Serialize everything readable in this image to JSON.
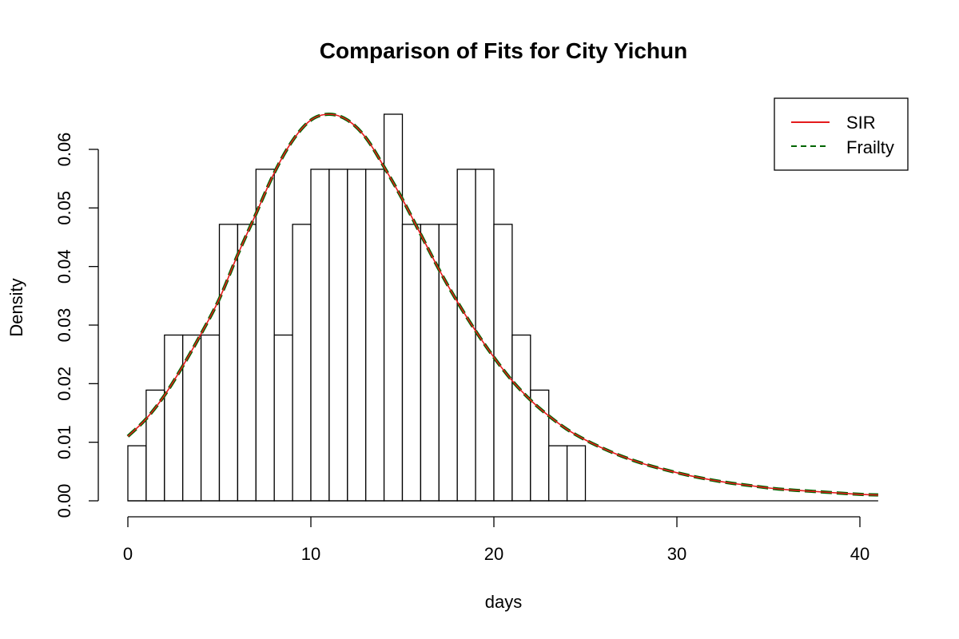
{
  "chart_data": {
    "type": "histogram",
    "title": "Comparison of Fits for City Yichun",
    "xlabel": "days",
    "ylabel": "Density",
    "xlim": [
      0,
      41
    ],
    "ylim": [
      0,
      0.066
    ],
    "x_ticks": [
      0,
      10,
      20,
      30,
      40
    ],
    "y_ticks": [
      0.0,
      0.01,
      0.02,
      0.03,
      0.04,
      0.05,
      0.06
    ],
    "x_tick_labels": [
      "0",
      "10",
      "20",
      "30",
      "40"
    ],
    "y_tick_labels": [
      "0.00",
      "0.01",
      "0.02",
      "0.03",
      "0.04",
      "0.05",
      "0.06"
    ],
    "grid": false,
    "legend_position": "top-right",
    "histogram": {
      "bin_width": 1,
      "bin_starts": [
        0,
        1,
        2,
        3,
        4,
        5,
        6,
        7,
        8,
        9,
        10,
        11,
        12,
        13,
        14,
        15,
        16,
        17,
        18,
        19,
        20,
        21,
        22,
        23,
        24
      ],
      "densities": [
        0.0094,
        0.0189,
        0.0283,
        0.0283,
        0.0283,
        0.0472,
        0.0472,
        0.0566,
        0.0283,
        0.0472,
        0.0566,
        0.0566,
        0.0566,
        0.0566,
        0.066,
        0.0472,
        0.0472,
        0.0472,
        0.0566,
        0.0566,
        0.0472,
        0.0283,
        0.0189,
        0.0094,
        0.0094
      ]
    },
    "series": [
      {
        "name": "SIR",
        "style": "solid",
        "color": "#e41a1c",
        "x": [
          0,
          1,
          2,
          3,
          4,
          5,
          6,
          7,
          8,
          9,
          10,
          11,
          12,
          13,
          14,
          15,
          16,
          17,
          18,
          19,
          20,
          21,
          22,
          23,
          24,
          25,
          26,
          27,
          28,
          29,
          30,
          31,
          32,
          33,
          34,
          35,
          36,
          37,
          38,
          39,
          40,
          41
        ],
        "y": [
          0.011,
          0.014,
          0.018,
          0.023,
          0.0285,
          0.0345,
          0.042,
          0.049,
          0.056,
          0.0615,
          0.065,
          0.066,
          0.065,
          0.062,
          0.057,
          0.0515,
          0.0455,
          0.0395,
          0.034,
          0.029,
          0.0245,
          0.0205,
          0.0172,
          0.0145,
          0.0122,
          0.0104,
          0.0089,
          0.0076,
          0.0065,
          0.0056,
          0.0048,
          0.0041,
          0.0035,
          0.003,
          0.0026,
          0.0022,
          0.0019,
          0.0017,
          0.0015,
          0.0013,
          0.0011,
          0.001
        ]
      },
      {
        "name": "Frailty",
        "style": "dashed",
        "color": "#006400",
        "x": [
          0,
          1,
          2,
          3,
          4,
          5,
          6,
          7,
          8,
          9,
          10,
          11,
          12,
          13,
          14,
          15,
          16,
          17,
          18,
          19,
          20,
          21,
          22,
          23,
          24,
          25,
          26,
          27,
          28,
          29,
          30,
          31,
          32,
          33,
          34,
          35,
          36,
          37,
          38,
          39,
          40,
          41
        ],
        "y": [
          0.011,
          0.014,
          0.018,
          0.023,
          0.0285,
          0.0345,
          0.042,
          0.049,
          0.056,
          0.0615,
          0.065,
          0.066,
          0.065,
          0.062,
          0.057,
          0.0515,
          0.0455,
          0.0395,
          0.034,
          0.029,
          0.0245,
          0.0205,
          0.0172,
          0.0145,
          0.0122,
          0.0104,
          0.0089,
          0.0076,
          0.0065,
          0.0056,
          0.0048,
          0.0041,
          0.0035,
          0.003,
          0.0026,
          0.0022,
          0.0019,
          0.0017,
          0.0015,
          0.0013,
          0.0011,
          0.001
        ]
      }
    ]
  }
}
